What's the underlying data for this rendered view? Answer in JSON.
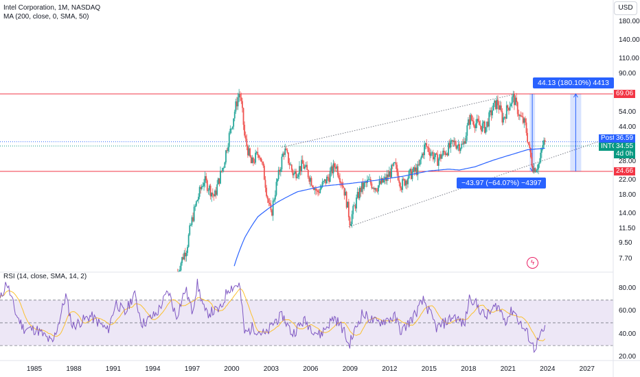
{
  "header": {
    "title": "Intel Corporation, 1M, NASDAQ",
    "indicator": "MA (200, close, 0, SMA, 50)"
  },
  "currency_button": "USD",
  "rsi": {
    "title": "RSI (14, close, SMA, 14, 2)"
  },
  "colors": {
    "up": "#26a69a",
    "down": "#ef5350",
    "ma": "#2962ff",
    "hline": "#f23645",
    "measure": "#2962ff",
    "rsi_line": "#7e57c2",
    "rsi_ma": "#fbc02d",
    "rsi_band": "#ede7f6"
  },
  "badges": {
    "resistance": "69.06",
    "support": "24.66",
    "post_label": "Post",
    "post_value": "36.59",
    "ticker": "INTC",
    "last_value": "34.55",
    "countdown": "4d 0h"
  },
  "measurements": {
    "up": "44.13 (180.10%) 4413",
    "down": "−43.97 (−64.07%) −4397"
  },
  "price_axis_ticks": [
    "180.00",
    "140.00",
    "110.00",
    "90.00",
    "54.00",
    "44.00",
    "28.00",
    "22.00",
    "18.00",
    "14.00",
    "11.50",
    "9.50",
    "7.70"
  ],
  "rsi_axis_ticks": [
    "80.00",
    "60.00",
    "40.00",
    "20.00"
  ],
  "time_axis_ticks": [
    "1985",
    "1988",
    "1991",
    "1994",
    "1997",
    "2000",
    "2003",
    "2006",
    "2009",
    "2012",
    "2015",
    "2018",
    "2021",
    "2024",
    "2027"
  ],
  "chart_data": {
    "type": "candlestick",
    "symbol": "INTC",
    "timeframe": "1M",
    "y_scale": "log",
    "ylim": [
      6.5,
      230
    ],
    "xlim": [
      1982.4,
      2029.0
    ],
    "horizontal_lines": [
      69.06,
      24.66
    ],
    "dotted_lines": [
      36.59,
      34.55
    ],
    "trend_channel": [
      {
        "from": [
          2003.8,
          34.0
        ],
        "to": [
          2021.6,
          69.0
        ]
      },
      {
        "from": [
          2008.9,
          11.8
        ],
        "to": [
          2028.5,
          38.0
        ]
      }
    ],
    "price_keypoints": [
      [
        1995.9,
        6.5
      ],
      [
        1996.6,
        9.0
      ],
      [
        1997.4,
        17.0
      ],
      [
        1997.9,
        22.0
      ],
      [
        1998.7,
        17.5
      ],
      [
        1999.4,
        27.0
      ],
      [
        2000.0,
        45.0
      ],
      [
        2000.6,
        71.0
      ],
      [
        2001.0,
        38.0
      ],
      [
        2001.5,
        27.0
      ],
      [
        2002.1,
        32.0
      ],
      [
        2002.7,
        18.0
      ],
      [
        2003.0,
        13.5
      ],
      [
        2003.6,
        24.0
      ],
      [
        2004.0,
        33.0
      ],
      [
        2004.7,
        23.5
      ],
      [
        2005.4,
        27.0
      ],
      [
        2006.5,
        18.5
      ],
      [
        2007.3,
        22.5
      ],
      [
        2007.9,
        27.0
      ],
      [
        2008.5,
        20.0
      ],
      [
        2009.0,
        12.5
      ],
      [
        2009.8,
        19.5
      ],
      [
        2010.4,
        21.5
      ],
      [
        2011.0,
        20.0
      ],
      [
        2011.7,
        22.0
      ],
      [
        2012.4,
        26.5
      ],
      [
        2012.9,
        20.5
      ],
      [
        2013.5,
        23.5
      ],
      [
        2014.2,
        25.5
      ],
      [
        2014.7,
        35.0
      ],
      [
        2015.6,
        28.5
      ],
      [
        2016.4,
        33.0
      ],
      [
        2016.9,
        36.0
      ],
      [
        2017.6,
        34.5
      ],
      [
        2018.1,
        50.0
      ],
      [
        2018.7,
        46.0
      ],
      [
        2019.3,
        44.0
      ],
      [
        2019.9,
        58.0
      ],
      [
        2020.2,
        62.0
      ],
      [
        2020.6,
        49.0
      ],
      [
        2021.0,
        58.0
      ],
      [
        2021.4,
        66.0
      ],
      [
        2021.9,
        51.0
      ],
      [
        2022.3,
        46.0
      ],
      [
        2022.7,
        30.0
      ],
      [
        2022.95,
        25.5
      ],
      [
        2023.4,
        27.5
      ],
      [
        2023.7,
        36.59
      ],
      [
        2023.85,
        34.55
      ]
    ],
    "ma_keypoints": [
      [
        2000.2,
        7.0
      ],
      [
        2001.0,
        10.2
      ],
      [
        2002.0,
        13.5
      ],
      [
        2003.5,
        16.4
      ],
      [
        2005.0,
        18.8
      ],
      [
        2007.0,
        20.3
      ],
      [
        2009.0,
        21.0
      ],
      [
        2011.0,
        21.9
      ],
      [
        2013.0,
        23.1
      ],
      [
        2015.0,
        24.8
      ],
      [
        2016.5,
        25.4
      ],
      [
        2017.3,
        25.1
      ],
      [
        2018.5,
        26.2
      ],
      [
        2020.0,
        28.8
      ],
      [
        2021.5,
        31.2
      ],
      [
        2022.5,
        32.9
      ],
      [
        2023.8,
        33.5
      ]
    ],
    "rsi_keypoints": [
      [
        1982.4,
        70
      ],
      [
        1982.9,
        86
      ],
      [
        1983.6,
        58
      ],
      [
        1984.2,
        45
      ],
      [
        1985.2,
        44
      ],
      [
        1986.4,
        32
      ],
      [
        1986.9,
        52
      ],
      [
        1987.4,
        74
      ],
      [
        1987.9,
        47
      ],
      [
        1989.3,
        56
      ],
      [
        1990.6,
        43
      ],
      [
        1991.2,
        68
      ],
      [
        1991.9,
        58
      ],
      [
        1992.6,
        76
      ],
      [
        1993.2,
        49
      ],
      [
        1994.3,
        58
      ],
      [
        1995.2,
        78
      ],
      [
        1995.8,
        55
      ],
      [
        1996.5,
        80
      ],
      [
        1997.0,
        60
      ],
      [
        1997.4,
        84
      ],
      [
        1998.0,
        58
      ],
      [
        1999.2,
        62
      ],
      [
        1999.7,
        80
      ],
      [
        2000.6,
        84
      ],
      [
        2001.0,
        40
      ],
      [
        2001.6,
        46
      ],
      [
        2002.6,
        39
      ],
      [
        2003.3,
        52
      ],
      [
        2003.9,
        56
      ],
      [
        2004.6,
        40
      ],
      [
        2005.5,
        52
      ],
      [
        2006.7,
        39
      ],
      [
        2007.8,
        55
      ],
      [
        2008.5,
        44
      ],
      [
        2008.9,
        30
      ],
      [
        2009.9,
        58
      ],
      [
        2011.0,
        50
      ],
      [
        2012.4,
        55
      ],
      [
        2012.9,
        42
      ],
      [
        2013.8,
        55
      ],
      [
        2014.6,
        70
      ],
      [
        2015.6,
        45
      ],
      [
        2016.9,
        56
      ],
      [
        2017.7,
        48
      ],
      [
        2018.1,
        74
      ],
      [
        2018.6,
        66
      ],
      [
        2019.3,
        55
      ],
      [
        2020.2,
        66
      ],
      [
        2020.8,
        52
      ],
      [
        2021.4,
        62
      ],
      [
        2022.0,
        48
      ],
      [
        2022.5,
        40
      ],
      [
        2023.0,
        27
      ],
      [
        2023.4,
        37
      ],
      [
        2023.85,
        45
      ]
    ],
    "rsi_bands": [
      70,
      50,
      30
    ],
    "rsi_ylim": [
      18,
      94
    ]
  }
}
